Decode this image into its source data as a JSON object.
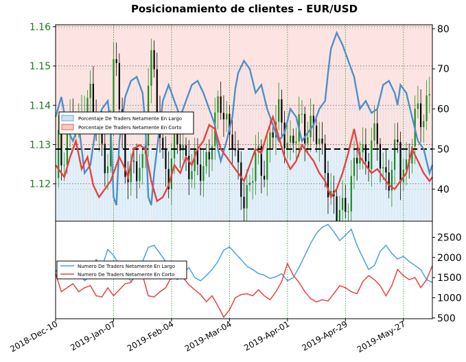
{
  "chart_data": {
    "type": "line",
    "title": "Posicionamiento de clientes – EUR/USD",
    "x_tick_labels": [
      "2018-Dec-10",
      "2019-Jan-07",
      "2019-Feb-04",
      "2019-Mar-04",
      "2019-Apr-01",
      "2019-Apr-29",
      "2019-May-27"
    ],
    "n_days": 130,
    "top_panel": {
      "price_axis": {
        "ylim": [
          1.1105,
          1.1605
        ],
        "ticks": [
          "1.16",
          "1.15",
          "1.14",
          "1.13",
          "1.12"
        ]
      },
      "percent_axis": {
        "ylim": [
          32,
          81
        ],
        "ticks": [
          "80",
          "70",
          "60",
          "50",
          "40"
        ]
      },
      "reference_line": 50,
      "legend": [
        {
          "name": "Porcentaje De Traders Netamente En Largo",
          "color": "#4a90c8"
        },
        {
          "name": "Porcentaje De Traders Netamente En Corto",
          "color": "#e8413c"
        }
      ],
      "net_long_pct": [
        [
          0,
          58
        ],
        [
          2,
          63
        ],
        [
          4,
          55
        ],
        [
          6,
          52
        ],
        [
          8,
          56
        ],
        [
          10,
          44
        ],
        [
          12,
          46
        ],
        [
          14,
          56
        ],
        [
          16,
          60
        ],
        [
          18,
          62
        ],
        [
          19,
          56
        ],
        [
          20,
          38
        ],
        [
          21,
          36
        ],
        [
          22,
          52
        ],
        [
          24,
          63
        ],
        [
          26,
          67
        ],
        [
          28,
          68
        ],
        [
          30,
          64
        ],
        [
          31,
          56
        ],
        [
          32,
          38
        ],
        [
          33,
          36
        ],
        [
          34,
          44
        ],
        [
          35,
          50
        ],
        [
          37,
          62
        ],
        [
          39,
          66
        ],
        [
          41,
          62
        ],
        [
          43,
          58
        ],
        [
          45,
          62
        ],
        [
          47,
          66
        ],
        [
          49,
          67
        ],
        [
          51,
          64
        ],
        [
          53,
          60
        ],
        [
          55,
          56
        ],
        [
          56,
          50
        ],
        [
          57,
          47
        ],
        [
          59,
          52
        ],
        [
          61,
          58
        ],
        [
          62,
          65
        ],
        [
          63,
          69
        ],
        [
          65,
          72
        ],
        [
          67,
          70
        ],
        [
          69,
          64
        ],
        [
          71,
          66
        ],
        [
          73,
          60
        ],
        [
          75,
          56
        ],
        [
          77,
          52
        ],
        [
          79,
          54
        ],
        [
          81,
          60
        ],
        [
          83,
          58
        ],
        [
          85,
          52
        ],
        [
          87,
          54
        ],
        [
          89,
          56
        ],
        [
          91,
          60
        ],
        [
          93,
          62
        ],
        [
          94,
          69
        ],
        [
          95,
          75
        ],
        [
          97,
          79
        ],
        [
          99,
          76
        ],
        [
          101,
          72
        ],
        [
          103,
          68
        ],
        [
          105,
          60
        ],
        [
          107,
          62
        ],
        [
          109,
          59
        ],
        [
          111,
          60
        ],
        [
          113,
          66
        ],
        [
          115,
          67
        ],
        [
          117,
          64
        ],
        [
          118,
          61
        ],
        [
          119,
          66
        ],
        [
          121,
          64
        ],
        [
          123,
          58
        ],
        [
          125,
          52
        ],
        [
          127,
          50
        ],
        [
          129,
          44
        ],
        [
          130,
          46
        ]
      ],
      "net_short_pct": [
        [
          0,
          46
        ],
        [
          3,
          43
        ],
        [
          5,
          48
        ],
        [
          7,
          52
        ],
        [
          9,
          45
        ],
        [
          11,
          48
        ],
        [
          13,
          41
        ],
        [
          15,
          38
        ],
        [
          17,
          40
        ],
        [
          19,
          42
        ],
        [
          21,
          46
        ],
        [
          22,
          48
        ],
        [
          24,
          45
        ],
        [
          25,
          43
        ],
        [
          27,
          50
        ],
        [
          29,
          51
        ],
        [
          31,
          50
        ],
        [
          33,
          42
        ],
        [
          35,
          37
        ],
        [
          37,
          38
        ],
        [
          39,
          41
        ],
        [
          41,
          46
        ],
        [
          43,
          44
        ],
        [
          45,
          48
        ],
        [
          47,
          46
        ],
        [
          49,
          50
        ],
        [
          51,
          52
        ],
        [
          53,
          56
        ],
        [
          55,
          55
        ],
        [
          57,
          50
        ],
        [
          59,
          48
        ],
        [
          61,
          46
        ],
        [
          63,
          44
        ],
        [
          65,
          42
        ],
        [
          67,
          46
        ],
        [
          69,
          50
        ],
        [
          71,
          49
        ],
        [
          73,
          54
        ],
        [
          75,
          58
        ],
        [
          77,
          53
        ],
        [
          79,
          48
        ],
        [
          81,
          45
        ],
        [
          83,
          47
        ],
        [
          85,
          51
        ],
        [
          87,
          49
        ],
        [
          89,
          47
        ],
        [
          91,
          44
        ],
        [
          93,
          42
        ],
        [
          95,
          38
        ],
        [
          97,
          40
        ],
        [
          99,
          44
        ],
        [
          101,
          49
        ],
        [
          103,
          55
        ],
        [
          105,
          48
        ],
        [
          107,
          46
        ],
        [
          109,
          44
        ],
        [
          111,
          45
        ],
        [
          113,
          43
        ],
        [
          115,
          41
        ],
        [
          117,
          40
        ],
        [
          119,
          42
        ],
        [
          121,
          44
        ],
        [
          123,
          50
        ],
        [
          125,
          47
        ],
        [
          127,
          44
        ],
        [
          129,
          42
        ],
        [
          130,
          43
        ]
      ]
    },
    "bottom_panel": {
      "count_axis": {
        "ylim": [
          480,
          2900
        ],
        "ticks": [
          "2500",
          "2000",
          "1500",
          "1000",
          "500"
        ]
      },
      "legend": [
        {
          "name": "Numero De Traders Netamente En Largo",
          "color": "#4a90c8"
        },
        {
          "name": "Numero De Traders Netamente En Corto",
          "color": "#e8413c"
        }
      ],
      "long_traders": [
        [
          0,
          1640
        ],
        [
          2,
          1850
        ],
        [
          4,
          1720
        ],
        [
          6,
          1900
        ],
        [
          8,
          1680
        ],
        [
          10,
          1420
        ],
        [
          12,
          1540
        ],
        [
          14,
          1950
        ],
        [
          16,
          1760
        ],
        [
          18,
          2200
        ],
        [
          20,
          2050
        ],
        [
          22,
          1800
        ],
        [
          24,
          1620
        ],
        [
          26,
          1400
        ],
        [
          28,
          1560
        ],
        [
          30,
          1900
        ],
        [
          32,
          2250
        ],
        [
          34,
          2300
        ],
        [
          36,
          2100
        ],
        [
          38,
          1900
        ],
        [
          40,
          1650
        ],
        [
          42,
          1450
        ],
        [
          44,
          1600
        ],
        [
          46,
          1750
        ],
        [
          48,
          1500
        ],
        [
          50,
          1420
        ],
        [
          52,
          1550
        ],
        [
          54,
          1700
        ],
        [
          56,
          1900
        ],
        [
          58,
          2180
        ],
        [
          60,
          2260
        ],
        [
          62,
          2100
        ],
        [
          64,
          1950
        ],
        [
          66,
          1780
        ],
        [
          68,
          1700
        ],
        [
          70,
          1600
        ],
        [
          72,
          1560
        ],
        [
          74,
          1480
        ],
        [
          76,
          1520
        ],
        [
          78,
          1600
        ],
        [
          80,
          1420
        ],
        [
          82,
          1500
        ],
        [
          84,
          1750
        ],
        [
          86,
          2050
        ],
        [
          88,
          2350
        ],
        [
          90,
          2600
        ],
        [
          92,
          2750
        ],
        [
          94,
          2820
        ],
        [
          96,
          2640
        ],
        [
          98,
          2420
        ],
        [
          100,
          2550
        ],
        [
          102,
          2700
        ],
        [
          104,
          2300
        ],
        [
          106,
          2000
        ],
        [
          108,
          1700
        ],
        [
          110,
          1800
        ],
        [
          112,
          2150
        ],
        [
          114,
          2300
        ],
        [
          116,
          2100
        ],
        [
          118,
          1960
        ],
        [
          120,
          2030
        ],
        [
          122,
          1900
        ],
        [
          124,
          1800
        ],
        [
          126,
          1700
        ],
        [
          128,
          1450
        ],
        [
          130,
          1380
        ]
      ],
      "short_traders": [
        [
          0,
          1600
        ],
        [
          2,
          1150
        ],
        [
          4,
          1250
        ],
        [
          6,
          1350
        ],
        [
          8,
          1150
        ],
        [
          10,
          1250
        ],
        [
          12,
          1300
        ],
        [
          14,
          1050
        ],
        [
          16,
          1020
        ],
        [
          18,
          1250
        ],
        [
          20,
          1050
        ],
        [
          22,
          1200
        ],
        [
          24,
          1350
        ],
        [
          26,
          1380
        ],
        [
          28,
          1650
        ],
        [
          30,
          1560
        ],
        [
          32,
          1050
        ],
        [
          34,
          1020
        ],
        [
          36,
          1150
        ],
        [
          38,
          1250
        ],
        [
          40,
          1520
        ],
        [
          42,
          1750
        ],
        [
          44,
          1500
        ],
        [
          46,
          1320
        ],
        [
          48,
          1200
        ],
        [
          50,
          1080
        ],
        [
          52,
          900
        ],
        [
          54,
          1050
        ],
        [
          56,
          800
        ],
        [
          58,
          520
        ],
        [
          60,
          700
        ],
        [
          62,
          1000
        ],
        [
          64,
          1080
        ],
        [
          66,
          1100
        ],
        [
          68,
          1050
        ],
        [
          70,
          1200
        ],
        [
          72,
          1050
        ],
        [
          74,
          950
        ],
        [
          76,
          1150
        ],
        [
          78,
          1400
        ],
        [
          80,
          1850
        ],
        [
          82,
          1560
        ],
        [
          84,
          1380
        ],
        [
          86,
          1150
        ],
        [
          88,
          980
        ],
        [
          90,
          900
        ],
        [
          92,
          950
        ],
        [
          94,
          920
        ],
        [
          96,
          1100
        ],
        [
          98,
          1300
        ],
        [
          100,
          1250
        ],
        [
          102,
          1150
        ],
        [
          104,
          1100
        ],
        [
          106,
          1400
        ],
        [
          108,
          1550
        ],
        [
          110,
          1450
        ],
        [
          112,
          1300
        ],
        [
          114,
          1050
        ],
        [
          116,
          1300
        ],
        [
          118,
          1700
        ],
        [
          120,
          1550
        ],
        [
          122,
          1450
        ],
        [
          124,
          1500
        ],
        [
          126,
          1250
        ],
        [
          128,
          1450
        ],
        [
          130,
          1800
        ]
      ]
    }
  }
}
